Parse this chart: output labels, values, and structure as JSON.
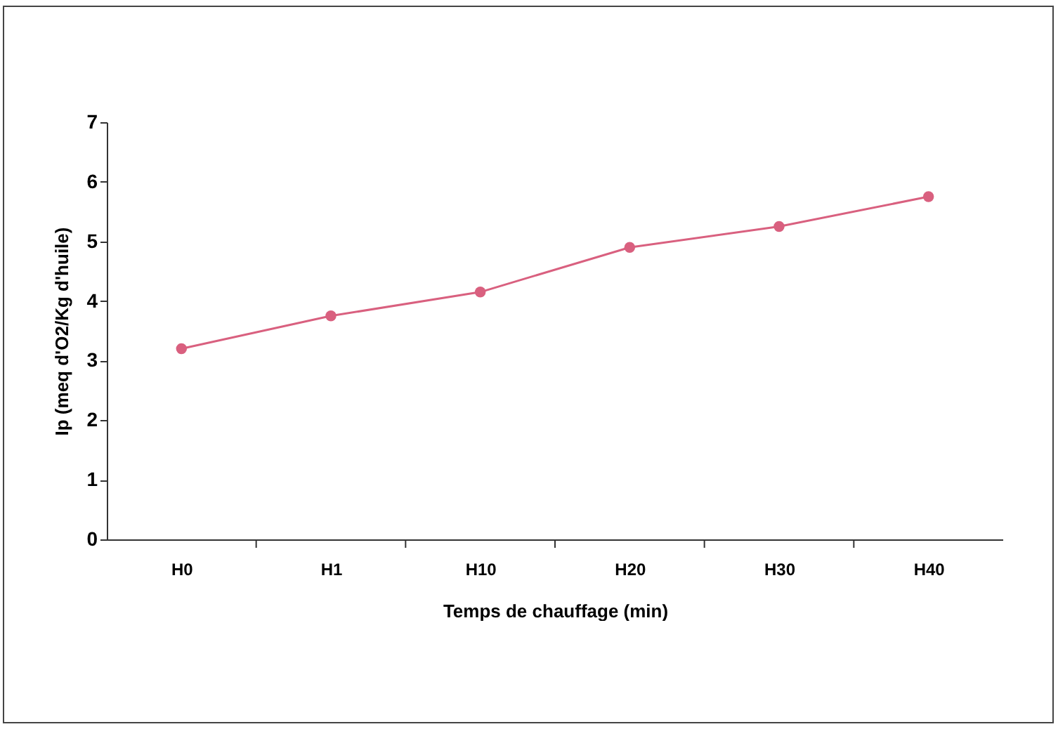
{
  "chart_data": {
    "type": "line",
    "xlabel": "Temps de chauffage (min)",
    "ylabel": "Ip (meq d'O2/Kg d'huile)",
    "categories": [
      "H0",
      "H1",
      "H10",
      "H20",
      "H30",
      "H40"
    ],
    "series": [
      {
        "color": "#d9607f",
        "values": [
          3.2,
          3.75,
          4.15,
          4.9,
          5.25,
          5.75
        ]
      }
    ],
    "ylim": [
      0,
      7
    ],
    "yticks": [
      0,
      1,
      2,
      3,
      4,
      5,
      6,
      7
    ],
    "grid": false,
    "marker": "circle",
    "line_style": "solid"
  }
}
